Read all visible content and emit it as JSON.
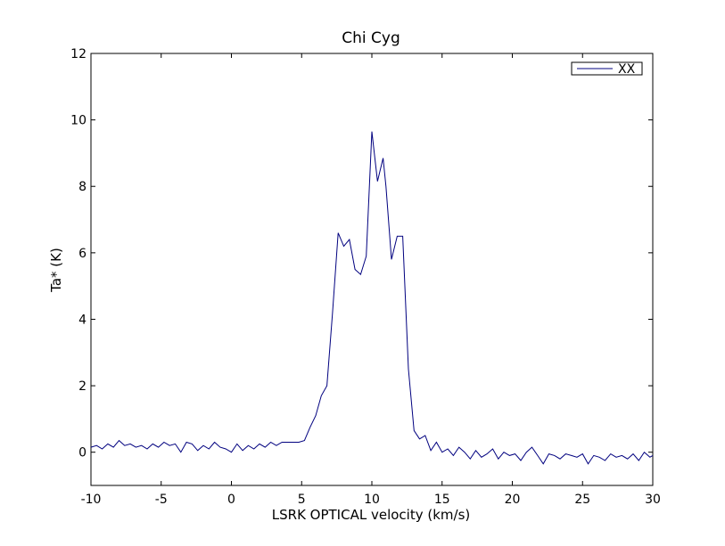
{
  "chart_data": {
    "type": "line",
    "title": "Chi Cyg",
    "xlabel": "LSRK OPTICAL velocity (km/s)",
    "ylabel": "Ta* (K)",
    "xlim": [
      -10,
      30
    ],
    "ylim": [
      -1,
      12
    ],
    "xticks": [
      -10,
      -5,
      0,
      5,
      10,
      15,
      20,
      25,
      30
    ],
    "xtick_labels": [
      "-10",
      "-5",
      "0",
      "5",
      "10",
      "15",
      "20",
      "25",
      "30"
    ],
    "yticks": [
      0,
      2,
      4,
      6,
      8,
      10,
      12
    ],
    "ytick_labels": [
      "0",
      "2",
      "4",
      "6",
      "8",
      "10",
      "12"
    ],
    "grid": false,
    "legend_position": "top-right",
    "series": [
      {
        "name": "XX",
        "color": "#00007f",
        "x": [
          -10.0,
          -9.6,
          -9.2,
          -8.8,
          -8.4,
          -8.0,
          -7.6,
          -7.2,
          -6.8,
          -6.4,
          -6.0,
          -5.6,
          -5.2,
          -4.8,
          -4.4,
          -4.0,
          -3.6,
          -3.2,
          -2.8,
          -2.4,
          -2.0,
          -1.6,
          -1.2,
          -0.8,
          -0.4,
          0.0,
          0.4,
          0.8,
          1.2,
          1.6,
          2.0,
          2.4,
          2.8,
          3.2,
          3.6,
          4.0,
          4.4,
          4.8,
          5.2,
          5.6,
          6.0,
          6.4,
          6.8,
          7.2,
          7.6,
          8.0,
          8.4,
          8.8,
          9.2,
          9.6,
          10.0,
          10.4,
          10.8,
          11.0,
          11.4,
          11.8,
          12.2,
          12.6,
          13.0,
          13.4,
          13.8,
          14.2,
          14.6,
          15.0,
          15.4,
          15.8,
          16.2,
          16.6,
          17.0,
          17.4,
          17.8,
          18.2,
          18.6,
          19.0,
          19.4,
          19.8,
          20.2,
          20.6,
          21.0,
          21.4,
          21.8,
          22.2,
          22.6,
          23.0,
          23.4,
          23.8,
          24.2,
          24.6,
          25.0,
          25.4,
          25.8,
          26.2,
          26.6,
          27.0,
          27.4,
          27.8,
          28.2,
          28.6,
          29.0,
          29.4,
          29.8,
          30.0
        ],
        "y": [
          0.15,
          0.2,
          0.1,
          0.25,
          0.15,
          0.35,
          0.2,
          0.25,
          0.15,
          0.2,
          0.1,
          0.25,
          0.15,
          0.3,
          0.2,
          0.25,
          0.0,
          0.3,
          0.25,
          0.05,
          0.2,
          0.1,
          0.3,
          0.15,
          0.1,
          0.0,
          0.25,
          0.05,
          0.2,
          0.1,
          0.25,
          0.15,
          0.3,
          0.2,
          0.3,
          0.3,
          0.3,
          0.3,
          0.35,
          0.75,
          1.1,
          1.7,
          2.0,
          4.2,
          6.6,
          6.2,
          6.4,
          5.5,
          5.35,
          5.9,
          9.65,
          8.15,
          8.85,
          8.0,
          5.8,
          6.5,
          6.5,
          2.5,
          0.65,
          0.4,
          0.5,
          0.05,
          0.3,
          0.0,
          0.1,
          -0.1,
          0.15,
          0.0,
          -0.2,
          0.05,
          -0.15,
          -0.05,
          0.1,
          -0.2,
          0.0,
          -0.1,
          -0.05,
          -0.25,
          0.0,
          0.15,
          -0.1,
          -0.35,
          -0.05,
          -0.1,
          -0.2,
          -0.05,
          -0.1,
          -0.15,
          -0.05,
          -0.35,
          -0.1,
          -0.15,
          -0.25,
          -0.05,
          -0.15,
          -0.1,
          -0.2,
          -0.05,
          -0.25,
          0.0,
          -0.15,
          -0.1
        ]
      }
    ]
  }
}
